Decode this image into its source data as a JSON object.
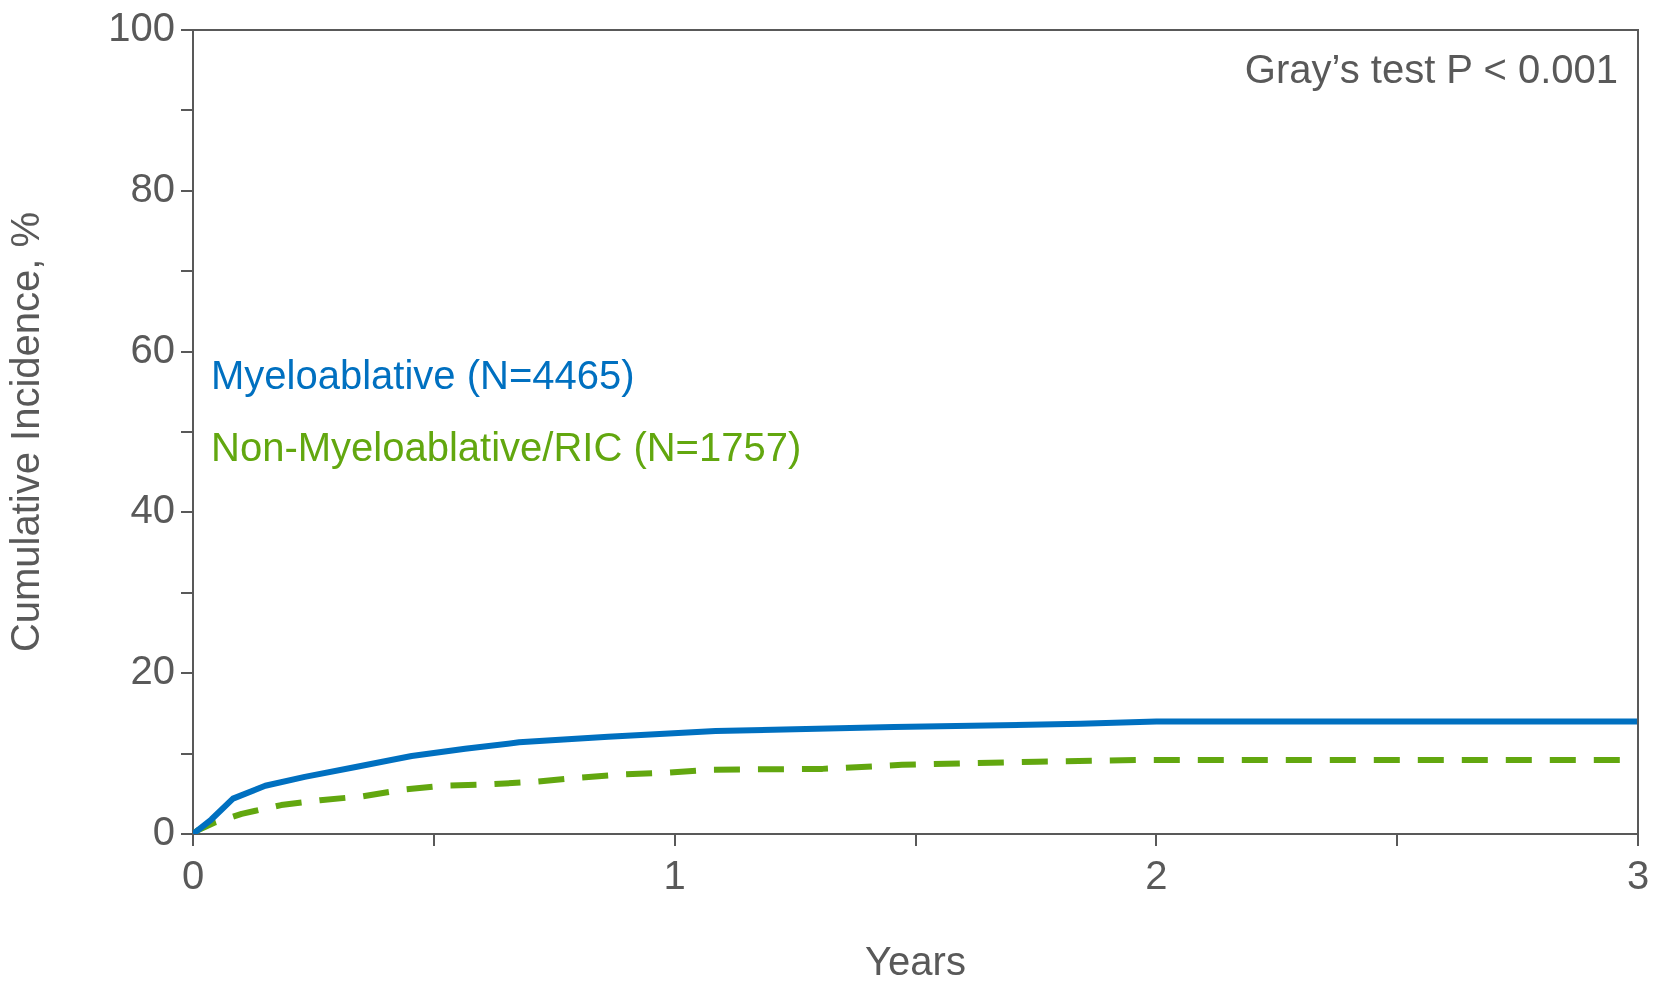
{
  "chart_data": {
    "type": "line",
    "xlabel": "Years",
    "ylabel": "Cumulative Incidence, %",
    "annotations": [
      "Gray’s test P < 0.001"
    ],
    "xlim": [
      0,
      3
    ],
    "xticks": [
      0,
      {
        "value": 0.5,
        "label": null
      },
      1,
      {
        "value": 1.5,
        "label": null
      },
      2,
      {
        "value": 2.5,
        "label": null
      },
      3
    ],
    "ylim": [
      0,
      100
    ],
    "yticks": [
      0,
      {
        "value": 10,
        "label": null
      },
      20,
      {
        "value": 30,
        "label": null
      },
      40,
      {
        "value": 50,
        "label": null
      },
      60,
      {
        "value": 70,
        "label": null
      },
      80,
      {
        "value": 90,
        "label": null
      },
      100
    ],
    "grid": false,
    "legend": false,
    "marker": "none",
    "series": [
      {
        "name": "Myeloablative (N=4465)",
        "color": "#0070c0",
        "line_style": "solid",
        "x": [
          0,
          0.038,
          0.083,
          0.15,
          0.232,
          0.343,
          0.454,
          0.565,
          0.677,
          0.862,
          1.085,
          1.455,
          1.843,
          2.0,
          3.0
        ],
        "values": [
          0,
          1.8,
          4.4,
          6.0,
          7.1,
          8.4,
          9.7,
          10.6,
          11.4,
          12.1,
          12.8,
          13.3,
          13.7,
          14.0,
          14.0
        ]
      },
      {
        "name": "Non-Myeloablative/RIC (N=1757)",
        "color": "#62a70f",
        "line_style": "dashed",
        "x": [
          0,
          0.011,
          0.044,
          0.101,
          0.183,
          0.264,
          0.353,
          0.435,
          0.517,
          0.621,
          0.71,
          0.799,
          0.888,
          0.978,
          1.074,
          1.307,
          1.472,
          1.752,
          1.968,
          3.0
        ],
        "values": [
          0,
          0.5,
          1.4,
          2.5,
          3.6,
          4.2,
          4.7,
          5.5,
          6.0,
          6.2,
          6.5,
          7.0,
          7.4,
          7.6,
          8.0,
          8.1,
          8.6,
          9.0,
          9.2,
          9.2
        ]
      }
    ]
  }
}
